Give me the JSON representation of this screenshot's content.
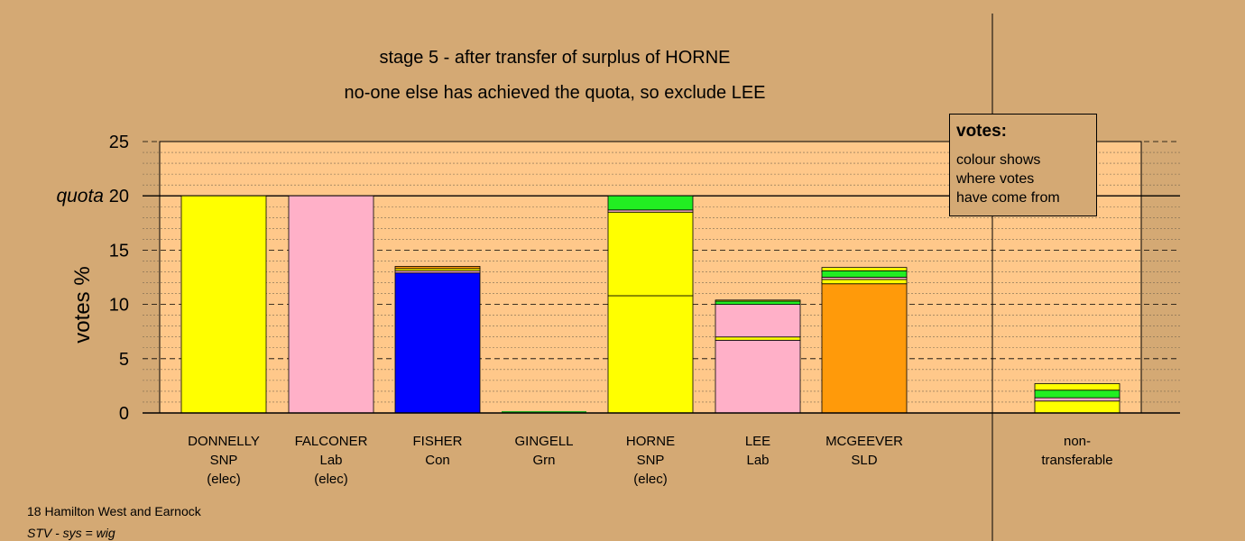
{
  "chart_data": {
    "type": "bar",
    "stacked": true,
    "title": "stage 5 - after transfer of surplus of HORNE",
    "subtitle": "no-one else has achieved the quota, so exclude LEE",
    "ylabel": "votes %",
    "ylim": [
      0,
      25
    ],
    "yticks": [
      "0",
      "5",
      "10",
      "15",
      "20",
      "25"
    ],
    "quota_label": "quota",
    "quota": 20,
    "grid": true,
    "legend": {
      "title": "votes:",
      "lines": [
        "colour shows",
        "where votes",
        "have come from"
      ],
      "placement": "top-right"
    },
    "candidates": [
      {
        "lines": [
          "DONNELLY",
          "SNP",
          "(elec)"
        ],
        "segments": [
          {
            "color": "#ffff00",
            "value": 20.0
          }
        ]
      },
      {
        "lines": [
          "FALCONER",
          "Lab",
          "(elec)"
        ],
        "segments": [
          {
            "color": "#ffb0c8",
            "value": 20.0
          }
        ]
      },
      {
        "lines": [
          "FISHER",
          "Con"
        ],
        "segments": [
          {
            "color": "#0000ff",
            "value": 12.9
          },
          {
            "color": "#ffb0c8",
            "value": 0.2
          },
          {
            "color": "#ffff00",
            "value": 0.2
          },
          {
            "color": "#ff9a0a",
            "value": 0.2
          }
        ]
      },
      {
        "lines": [
          "GINGELL",
          "Grn"
        ],
        "segments": [
          {
            "color": "#00cc00",
            "value": 0.0
          }
        ]
      },
      {
        "lines": [
          "HORNE",
          "SNP",
          "(elec)"
        ],
        "segments": [
          {
            "color": "#ffff00",
            "value": 10.8
          },
          {
            "color": "#ffff00",
            "value": 7.7
          },
          {
            "color": "#ffb0c8",
            "value": 0.2
          },
          {
            "color": "#22ee22",
            "value": 1.3
          }
        ]
      },
      {
        "lines": [
          "LEE",
          "Lab"
        ],
        "segments": [
          {
            "color": "#ffb0c8",
            "value": 6.7
          },
          {
            "color": "#ffff00",
            "value": 0.3
          },
          {
            "color": "#ffb0c8",
            "value": 3.0
          },
          {
            "color": "#22ee22",
            "value": 0.3
          },
          {
            "color": "#ffff00",
            "value": 0.1
          }
        ]
      },
      {
        "lines": [
          "MCGEEVER",
          "SLD"
        ],
        "segments": [
          {
            "color": "#ff9a0a",
            "value": 11.9
          },
          {
            "color": "#ffff00",
            "value": 0.4
          },
          {
            "color": "#ffb0c8",
            "value": 0.2
          },
          {
            "color": "#22ee22",
            "value": 0.6
          },
          {
            "color": "#ffff00",
            "value": 0.3
          }
        ]
      },
      {
        "lines": [
          "non-",
          "transferable"
        ],
        "segments": [
          {
            "color": "#ffff00",
            "value": 1.1
          },
          {
            "color": "#ffb0c8",
            "value": 0.3
          },
          {
            "color": "#22ee22",
            "value": 0.7
          },
          {
            "color": "#ffff00",
            "value": 0.6
          }
        ]
      }
    ]
  },
  "footer": {
    "region": "18 Hamilton West and Earnock",
    "system": "STV - sys = wig"
  }
}
